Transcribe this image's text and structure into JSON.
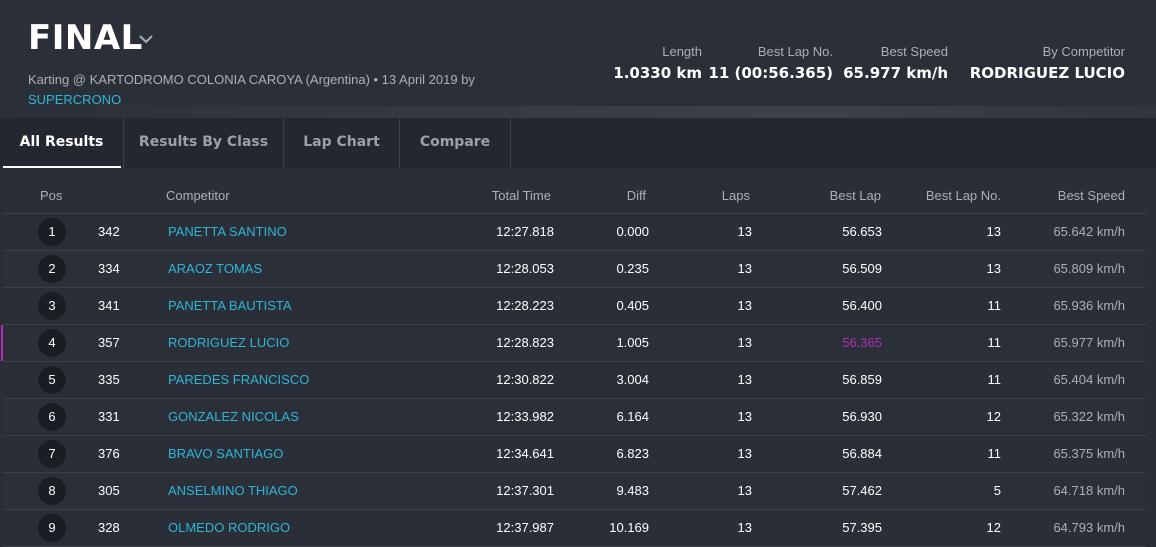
{
  "header": {
    "title": "FINAL",
    "subtitle_prefix": "Karting @ KARTODROMO COLONIA CAROYA (Argentina) • 13 April 2019 by",
    "subtitle_link": "SUPERCRONO",
    "stats": [
      {
        "label": "Length",
        "value": "1.0330 km"
      },
      {
        "label": "Best Lap No.",
        "value": "11 (00:56.365)"
      },
      {
        "label": "Best Speed",
        "value": "65.977 km/h"
      },
      {
        "label": "By Competitor",
        "value": "RODRIGUEZ LUCIO"
      }
    ]
  },
  "tabs": [
    {
      "label": "All Results",
      "active": true
    },
    {
      "label": "Results By Class",
      "active": false
    },
    {
      "label": "Lap Chart",
      "active": false
    },
    {
      "label": "Compare",
      "active": false
    }
  ],
  "table": {
    "columns": {
      "pos": "Pos",
      "competitor": "Competitor",
      "total_time": "Total Time",
      "diff": "Diff",
      "laps": "Laps",
      "best_lap": "Best Lap",
      "best_lap_no": "Best Lap No.",
      "best_speed": "Best Speed"
    },
    "rows": [
      {
        "pos": "1",
        "num": "342",
        "name": "PANETTA SANTINO",
        "total": "12:27.818",
        "diff": "0.000",
        "laps": "13",
        "best_lap": "56.653",
        "best_lap_no": "13",
        "speed": "65.642 km/h"
      },
      {
        "pos": "2",
        "num": "334",
        "name": "ARAOZ TOMAS",
        "total": "12:28.053",
        "diff": "0.235",
        "laps": "13",
        "best_lap": "56.509",
        "best_lap_no": "13",
        "speed": "65.809 km/h"
      },
      {
        "pos": "3",
        "num": "341",
        "name": "PANETTA BAUTISTA",
        "total": "12:28.223",
        "diff": "0.405",
        "laps": "13",
        "best_lap": "56.400",
        "best_lap_no": "11",
        "speed": "65.936 km/h"
      },
      {
        "pos": "4",
        "num": "357",
        "name": "RODRIGUEZ LUCIO",
        "total": "12:28.823",
        "diff": "1.005",
        "laps": "13",
        "best_lap": "56.365",
        "best_lap_no": "11",
        "speed": "65.977 km/h"
      },
      {
        "pos": "5",
        "num": "335",
        "name": "PAREDES FRANCISCO",
        "total": "12:30.822",
        "diff": "3.004",
        "laps": "13",
        "best_lap": "56.859",
        "best_lap_no": "11",
        "speed": "65.404 km/h"
      },
      {
        "pos": "6",
        "num": "331",
        "name": "GONZALEZ NICOLAS",
        "total": "12:33.982",
        "diff": "6.164",
        "laps": "13",
        "best_lap": "56.930",
        "best_lap_no": "12",
        "speed": "65.322 km/h"
      },
      {
        "pos": "7",
        "num": "376",
        "name": "BRAVO SANTIAGO",
        "total": "12:34.641",
        "diff": "6.823",
        "laps": "13",
        "best_lap": "56.884",
        "best_lap_no": "11",
        "speed": "65.375 km/h"
      },
      {
        "pos": "8",
        "num": "305",
        "name": "ANSELMINO THIAGO",
        "total": "12:37.301",
        "diff": "9.483",
        "laps": "13",
        "best_lap": "57.462",
        "best_lap_no": "5",
        "speed": "64.718 km/h"
      },
      {
        "pos": "9",
        "num": "328",
        "name": "OLMEDO RODRIGO",
        "total": "12:37.987",
        "diff": "10.169",
        "laps": "13",
        "best_lap": "57.395",
        "best_lap_no": "12",
        "speed": "64.793 km/h"
      }
    ]
  },
  "highlight": {
    "fastest_lap_color": "#b12fb3",
    "link_color": "#2fb5d8"
  }
}
